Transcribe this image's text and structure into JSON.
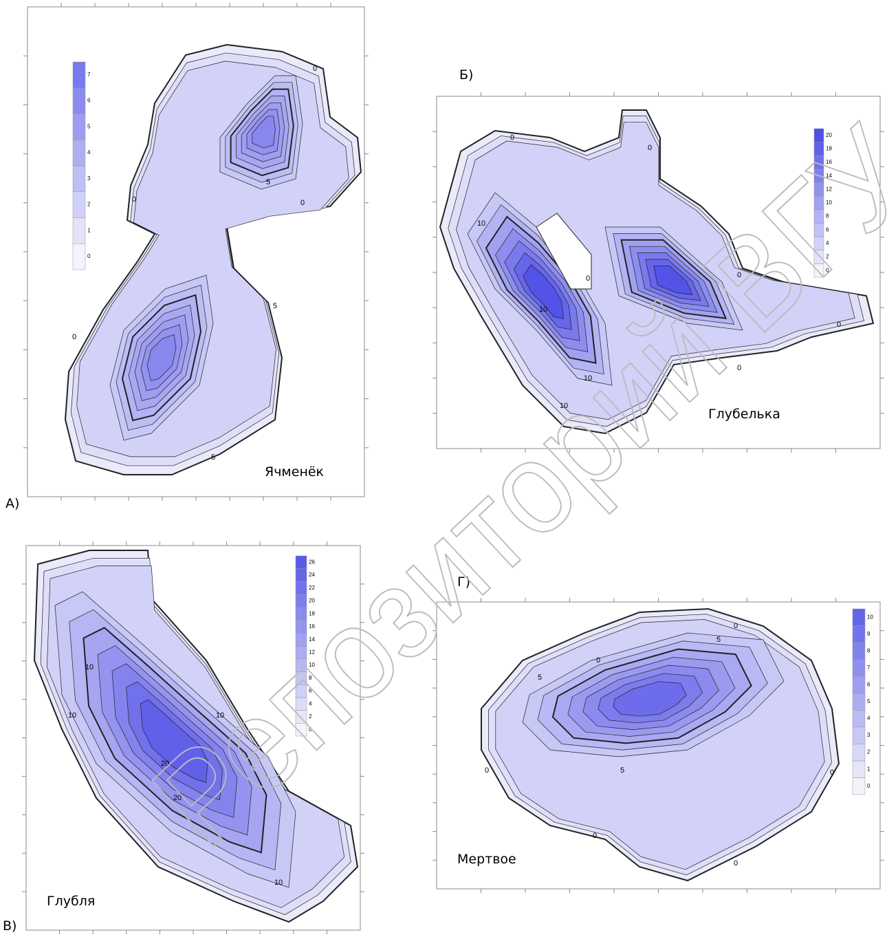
{
  "watermark": "Репозиторий ВГУ",
  "panels": [
    {
      "label": "А)",
      "name": "Ячменёк",
      "colorbar": [
        0,
        1,
        2,
        3,
        4,
        5,
        6,
        7
      ],
      "contour_labels": [
        "0",
        "0",
        "0",
        "0",
        "5",
        "5",
        "5"
      ]
    },
    {
      "label": "Б)",
      "name": "Глубелька",
      "colorbar": [
        0,
        2,
        4,
        6,
        8,
        10,
        12,
        14,
        16,
        18,
        20
      ],
      "contour_labels": [
        "0",
        "0",
        "0",
        "0",
        "0",
        "0",
        "10",
        "10",
        "10",
        "10"
      ]
    },
    {
      "label": "В)",
      "name": "Глубля",
      "colorbar": [
        0,
        2,
        4,
        6,
        8,
        10,
        12,
        14,
        16,
        18,
        20,
        22,
        24,
        26
      ],
      "contour_labels": [
        "10",
        "10",
        "10",
        "10",
        "20",
        "20"
      ]
    },
    {
      "label": "Г)",
      "name": "Мертвое",
      "colorbar": [
        0,
        1,
        2,
        3,
        4,
        5,
        6,
        7,
        8,
        9,
        10
      ],
      "contour_labels": [
        "0",
        "0",
        "0",
        "0",
        "0",
        "0",
        "5",
        "5",
        "5"
      ]
    }
  ]
}
